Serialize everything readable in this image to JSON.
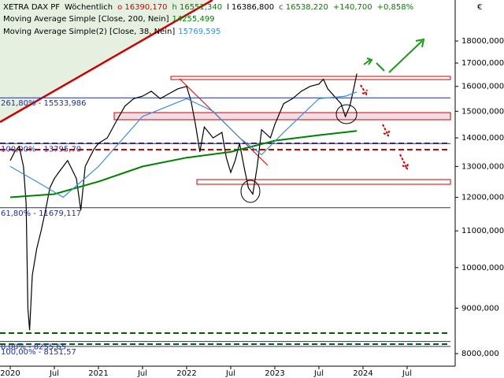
{
  "chart_data": {
    "type": "line",
    "header": [
      "XETRA DAX PF",
      "Wöchentlich",
      "o 16390,170",
      "h 16551,340",
      "l 16386,800",
      "c 16538,220",
      "+140,700",
      "+0,858%"
    ],
    "header_colors": [
      "#000000",
      "#000000",
      "#d00000",
      "#008000",
      "#000000",
      "#008000",
      "#008000",
      "#008000"
    ],
    "currency": "€",
    "legend": [
      {
        "label": "Moving Average Simple [Close, 200, Nein]",
        "value": "14255,499",
        "color": "#008000"
      },
      {
        "label": "Moving Average Simple(2) [Close, 38, Nein]",
        "value": "15769,595",
        "color": "#3a8fd6"
      }
    ],
    "log_scale": true,
    "xlim": [
      2019.884,
      2025.045
    ],
    "xticks": [
      {
        "value": 2020,
        "label": "2020"
      },
      {
        "value": 2020.5,
        "label": "Jul"
      },
      {
        "value": 2021,
        "label": "2021"
      },
      {
        "value": 2021.5,
        "label": "Jul"
      },
      {
        "value": 2022,
        "label": "2022"
      },
      {
        "value": 2022.5,
        "label": "Jul"
      },
      {
        "value": 2023,
        "label": "2023"
      },
      {
        "value": 2023.5,
        "label": "Jul"
      },
      {
        "value": 2024,
        "label": "2024"
      },
      {
        "value": 2024.5,
        "label": "Jul"
      }
    ],
    "ylim": [
      7743,
      20020
    ],
    "yticks": [
      {
        "value": 8000,
        "label": "8000,000"
      },
      {
        "value": 9000,
        "label": "9000,000"
      },
      {
        "value": 10000,
        "label": "10000,000"
      },
      {
        "value": 11000,
        "label": "11000,000"
      },
      {
        "value": 12000,
        "label": "12000,000"
      },
      {
        "value": 13000,
        "label": "13000,000"
      },
      {
        "value": 14000,
        "label": "14000,000"
      },
      {
        "value": 15000,
        "label": "15000,000"
      },
      {
        "value": 16000,
        "label": "16000,000"
      },
      {
        "value": 17000,
        "label": "17000,000"
      },
      {
        "value": 18000,
        "label": "18000,000"
      }
    ],
    "fib_levels": [
      {
        "label": "261,80% - 15533,986",
        "value": 15533.986,
        "color": "#1f2f9f"
      },
      {
        "label": "100,00% - 13795,70",
        "value": 13795.7,
        "color": "#1f2f9f"
      },
      {
        "label": "61,80% - 11679,117",
        "value": 11679.117,
        "color": "#1f2f9f"
      },
      {
        "label": "0,00% - 8255,65",
        "value": 8255.65,
        "color": "#1f2f9f"
      },
      {
        "label": "100,00% - 8151,57",
        "value": 8151.57,
        "color": "#1f2f9f"
      }
    ],
    "series": [
      {
        "name": "XETRA DAX PF",
        "color": "#000000",
        "x": [
          2020.0,
          2020.05,
          2020.1,
          2020.15,
          2020.18,
          2020.2,
          2020.22,
          2020.25,
          2020.3,
          2020.35,
          2020.4,
          2020.45,
          2020.5,
          2020.55,
          2020.6,
          2020.65,
          2020.7,
          2020.75,
          2020.8,
          2020.85,
          2020.9,
          2020.95,
          2021.0,
          2021.1,
          2021.2,
          2021.3,
          2021.4,
          2021.5,
          2021.6,
          2021.7,
          2021.8,
          2021.9,
          2022.0,
          2022.05,
          2022.1,
          2022.15,
          2022.2,
          2022.3,
          2022.4,
          2022.45,
          2022.5,
          2022.55,
          2022.6,
          2022.65,
          2022.7,
          2022.75,
          2022.8,
          2022.85,
          2022.95,
          2023.0,
          2023.1,
          2023.2,
          2023.3,
          2023.4,
          2023.5,
          2023.55,
          2023.6,
          2023.7,
          2023.75,
          2023.8,
          2023.85,
          2023.9,
          2023.93
        ],
        "values": [
          13200,
          13500,
          13700,
          13000,
          11800,
          9000,
          8500,
          9800,
          10500,
          11000,
          11600,
          12300,
          12600,
          12800,
          13000,
          13200,
          12900,
          12600,
          11600,
          13000,
          13300,
          13600,
          13800,
          14000,
          14600,
          15200,
          15500,
          15600,
          15800,
          15500,
          15700,
          15900,
          16000,
          15400,
          14500,
          13500,
          14400,
          14000,
          14200,
          13300,
          12800,
          13200,
          13800,
          13000,
          12300,
          12100,
          13000,
          14300,
          14000,
          14500,
          15300,
          15500,
          15800,
          16000,
          16100,
          16300,
          15900,
          15500,
          15300,
          14800,
          15200,
          16000,
          16538
        ]
      },
      {
        "name": "Moving Average Simple [Close, 200, Nein]",
        "color": "#008000",
        "x": [
          2020.0,
          2020.5,
          2021.0,
          2021.5,
          2022.0,
          2022.5,
          2023.0,
          2023.5,
          2023.93
        ],
        "values": [
          12000,
          12100,
          12500,
          13000,
          13300,
          13500,
          13900,
          14100,
          14255
        ]
      },
      {
        "name": "Moving Average Simple(2) [Close, 38, Nein]",
        "color": "#3a8fd6",
        "x": [
          2020.0,
          2020.3,
          2020.6,
          2021.0,
          2021.5,
          2022.0,
          2022.3,
          2022.6,
          2022.85,
          2023.1,
          2023.5,
          2023.8,
          2023.93
        ],
        "values": [
          13000,
          12500,
          12000,
          13000,
          14800,
          15500,
          15000,
          14000,
          13400,
          14200,
          15500,
          15600,
          15770
        ]
      }
    ]
  }
}
